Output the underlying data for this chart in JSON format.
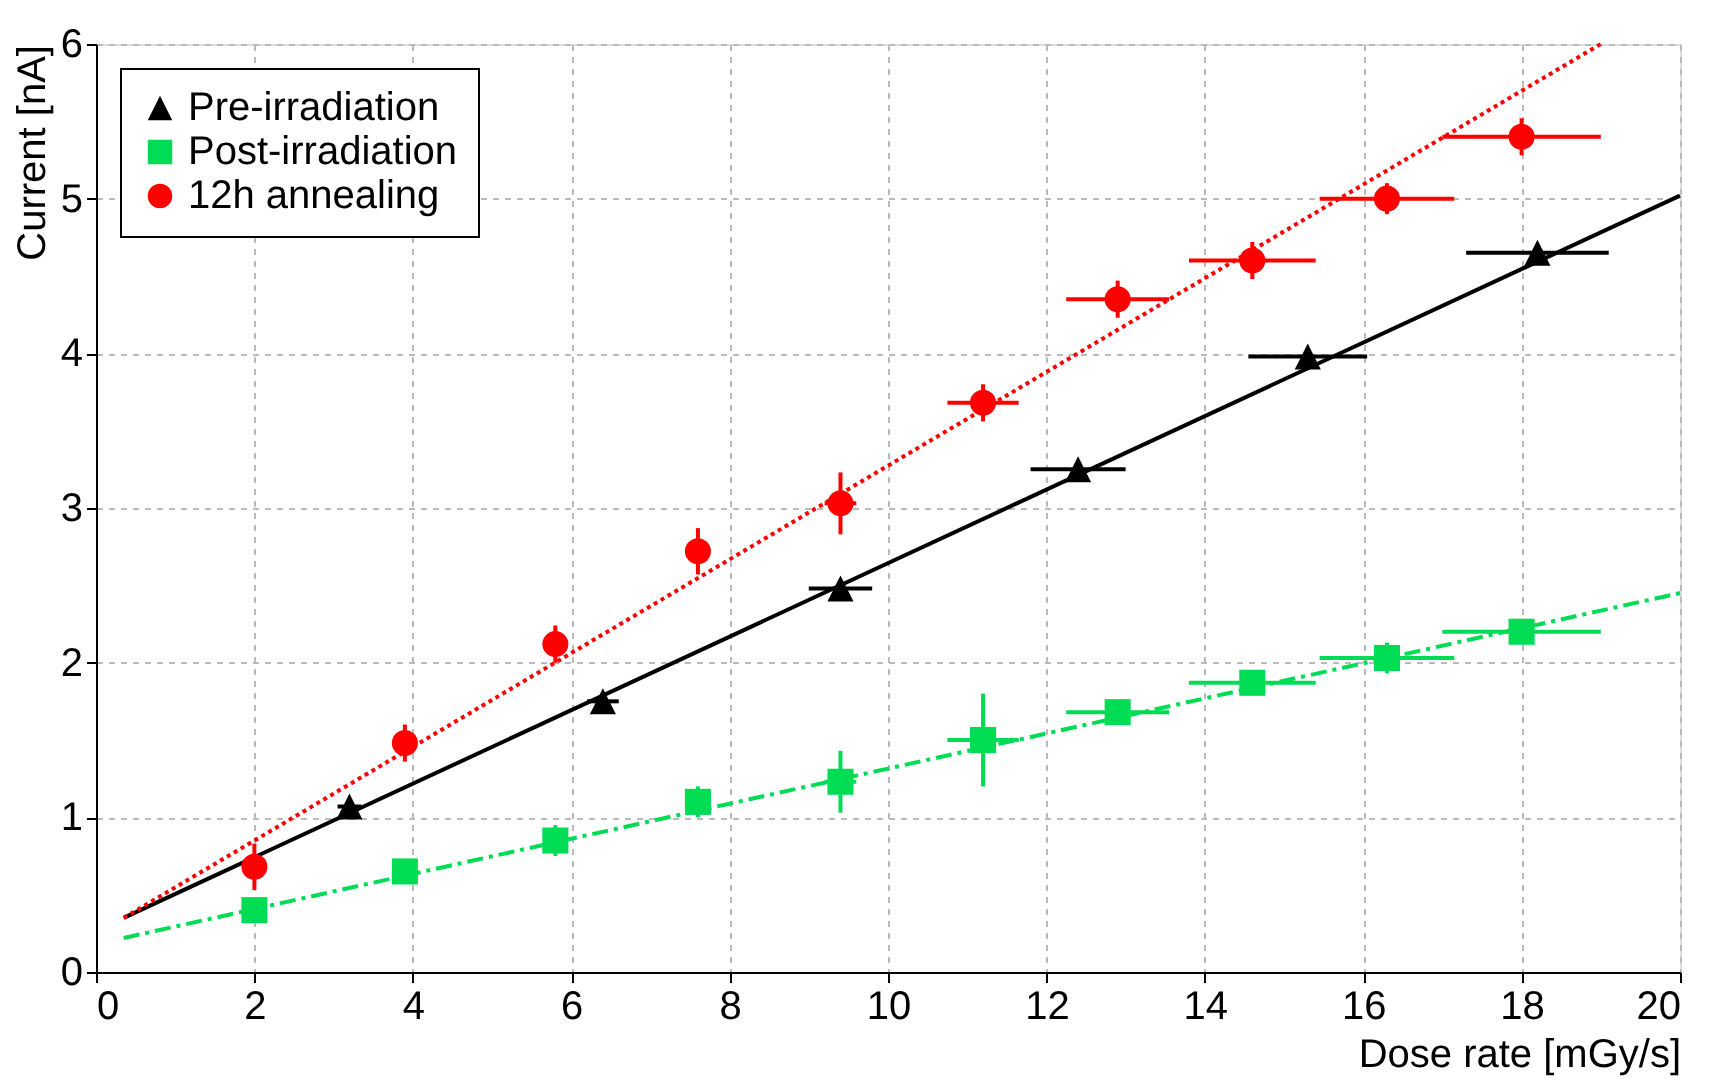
{
  "chart_data": {
    "type": "scatter",
    "xlabel": "Dose rate [mGy/s]",
    "ylabel": "Current [nA]",
    "xlim": [
      0,
      20
    ],
    "ylim": [
      0,
      6
    ],
    "xticks": [
      0,
      2,
      4,
      6,
      8,
      10,
      12,
      14,
      16,
      18,
      20
    ],
    "yticks": [
      0,
      1,
      2,
      3,
      4,
      5,
      6
    ],
    "grid": true,
    "legend": "top left",
    "series": [
      {
        "name": "Pre-irradiation",
        "color": "#000000",
        "marker": "triangle",
        "x": [
          3.2,
          6.4,
          9.4,
          12.4,
          15.3,
          18.2
        ],
        "values": [
          1.07,
          1.75,
          2.48,
          3.25,
          3.98,
          4.65
        ],
        "errors": [
          0.05,
          0.05,
          0.05,
          0.05,
          0.05,
          0.05
        ],
        "xerrors": [
          0.15,
          0.2,
          0.4,
          0.6,
          0.75,
          0.9
        ]
      },
      {
        "name": "Post-irradiation",
        "color": "#00dd55",
        "marker": "square",
        "x": [
          2,
          3.9,
          5.8,
          7.6,
          9.4,
          11.2,
          12.9,
          14.6,
          16.3,
          18
        ],
        "values": [
          0.4,
          0.65,
          0.85,
          1.1,
          1.23,
          1.5,
          1.68,
          1.87,
          2.03,
          2.2
        ],
        "errors": [
          0.08,
          0.08,
          0.1,
          0.1,
          0.2,
          0.3,
          0.08,
          0.08,
          0.1,
          0.08
        ],
        "xerrors": [
          0.1,
          0.1,
          0.1,
          0.15,
          0.2,
          0.45,
          0.65,
          0.8,
          0.85,
          1.0
        ]
      },
      {
        "name": "12h annealing",
        "color": "#ff0000",
        "marker": "circle",
        "x": [
          2,
          3.9,
          5.8,
          7.6,
          9.4,
          11.2,
          12.9,
          14.6,
          16.3,
          18
        ],
        "values": [
          0.68,
          1.48,
          2.12,
          2.72,
          3.03,
          3.68,
          4.35,
          4.6,
          5.0,
          5.4
        ],
        "errors": [
          0.15,
          0.12,
          0.12,
          0.15,
          0.2,
          0.12,
          0.12,
          0.12,
          0.1,
          0.12
        ],
        "xerrors": [
          0.1,
          0.1,
          0.1,
          0.15,
          0.2,
          0.45,
          0.65,
          0.8,
          0.85,
          1.0
        ]
      },
      {
        "type": "line",
        "color": "#000000",
        "line_style": "solid",
        "x": [
          0.35,
          20
        ],
        "values": [
          0.35,
          5.02
        ]
      },
      {
        "type": "line",
        "color": "#00dd55",
        "line_style": "dashed",
        "x": [
          0.35,
          20
        ],
        "values": [
          0.22,
          2.45
        ]
      },
      {
        "type": "line",
        "color": "#ff0000",
        "line_style": "dotted",
        "x": [
          0.35,
          19
        ],
        "values": [
          0.35,
          6.0
        ]
      }
    ]
  }
}
